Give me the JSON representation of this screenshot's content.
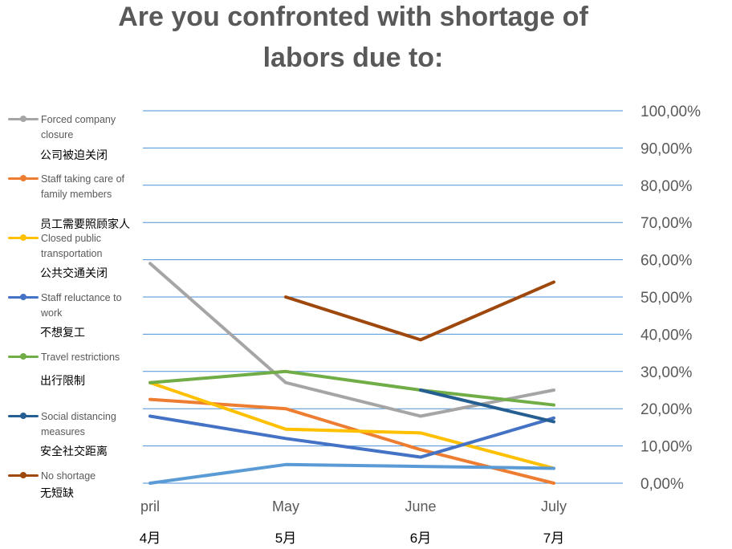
{
  "chart_data": {
    "type": "line",
    "title_lines": [
      "Are you confronted with shortage of",
      "labors due to:"
    ],
    "categories": [
      "pril",
      "May",
      "June",
      "July"
    ],
    "categories_zh": [
      "4月",
      "5月",
      "6月",
      "7月"
    ],
    "y_tick_labels": [
      "0,00%",
      "10,00%",
      "20,00%",
      "30,00%",
      "40,00%",
      "50,00%",
      "60,00%",
      "70,00%",
      "80,00%",
      "90,00%",
      "100,00%"
    ],
    "ylim": [
      0,
      100
    ],
    "y_axis_side": "right",
    "grid": true,
    "legend_position": "left",
    "series": [
      {
        "name": "Forced company closure",
        "name_zh": "公司被迫关闭",
        "color": "#a5a5a5",
        "values": [
          59,
          27,
          18,
          25
        ]
      },
      {
        "name": "Staff taking care of family members",
        "name_zh": "员工需要照顾家人",
        "color": "#ed7d31",
        "values": [
          22.5,
          20,
          9,
          0
        ]
      },
      {
        "name": "Closed public transportation",
        "name_zh": "公共交通关闭",
        "color": "#ffc000",
        "values": [
          27,
          14.5,
          13.5,
          4
        ]
      },
      {
        "name": "Staff reluctance to work",
        "name_zh": "不想复工",
        "color": "#4472c4",
        "values": [
          18,
          12,
          7,
          17.5
        ]
      },
      {
        "name": "Travel restrictions",
        "name_zh": "出行限制",
        "color": "#70ad47",
        "values": [
          27,
          30,
          25,
          21
        ]
      },
      {
        "name": "Social distancing measures",
        "name_zh": "安全社交距离",
        "color": "#255e91",
        "values": [
          null,
          null,
          25,
          16.5
        ]
      },
      {
        "name": "No shortage",
        "name_zh": "无短缺",
        "color": "#9e480e",
        "values": [
          null,
          50,
          38.5,
          54
        ]
      },
      {
        "name": "",
        "name_zh": "",
        "color": "#5b9bd5",
        "values": [
          0,
          5,
          4.5,
          4
        ]
      }
    ]
  }
}
